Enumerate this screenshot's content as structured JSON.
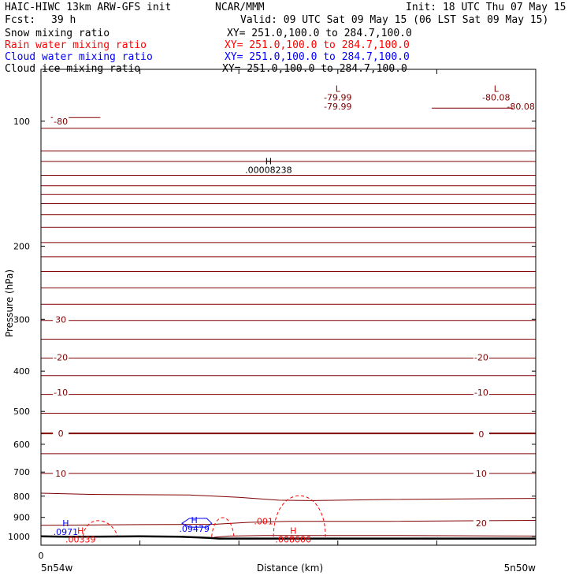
{
  "header": {
    "model_title": "HAIC-HIWC 13km ARW-GFS init",
    "institution": "NCAR/MMM",
    "init_time": "Init: 18 UTC Thu 07 May 15",
    "forecast_label": "Fcst:",
    "forecast_hours": "39 h",
    "valid_time": "Valid: 09 UTC Sat 09 May 15 (06 LST Sat 09 May 15)",
    "fields": [
      {
        "name": "Snow mixing ratio",
        "xy": "XY= 251.0,100.0 to 284.7,100.0",
        "color": "#000000"
      },
      {
        "name": "Rain water mixing ratio",
        "xy": "XY= 251.0,100.0 to 284.7,100.0",
        "color": "#ff0000"
      },
      {
        "name": "Cloud water mixing ratio",
        "xy": "XY= 251.0,100.0 to 284.7,100.0",
        "color": "#0000ff"
      },
      {
        "name": "Cloud ice mixing ratio",
        "xy": "XY= 251.0,100.0 to 284.7,100.0",
        "color": "#000000"
      }
    ]
  },
  "chart_data": {
    "type": "contour-cross-section",
    "ylabel": "Pressure (hPa)",
    "xlabel": "Distance (km)",
    "y_scale": "log-pressure",
    "ylim": [
      1050,
      75
    ],
    "y_ticks": [
      100,
      200,
      300,
      400,
      500,
      600,
      700,
      800,
      900,
      1000
    ],
    "x_ticks_count": 5,
    "x_start_label": "0",
    "x_left_label": "5n54w",
    "x_right_label": "5n50w",
    "colors": {
      "temperature": "#800000",
      "rain": "#ff0000",
      "cloud": "#0000ff",
      "terrain": "#000000"
    },
    "temperature_labels": [
      {
        "text": "-80",
        "x": 0.04,
        "p": 100
      },
      {
        "text": "-79.99",
        "x": 0.6,
        "p": 92
      },
      {
        "text": "-80.08",
        "x": 0.97,
        "p": 92
      },
      {
        "text": "30",
        "x": 0.04,
        "p": 300
      },
      {
        "text": "-20",
        "x": 0.04,
        "p": 370
      },
      {
        "text": "-20",
        "x": 0.89,
        "p": 370
      },
      {
        "text": "-10",
        "x": 0.04,
        "p": 450
      },
      {
        "text": "-10",
        "x": 0.89,
        "p": 450
      },
      {
        "text": "0",
        "x": 0.04,
        "p": 565
      },
      {
        "text": "0",
        "x": 0.89,
        "p": 567
      },
      {
        "text": "10",
        "x": 0.04,
        "p": 705
      },
      {
        "text": "10",
        "x": 0.89,
        "p": 705
      },
      {
        "text": "20",
        "x": 0.89,
        "p": 930
      }
    ],
    "extrema": [
      {
        "mark": "L",
        "value": "-79.99",
        "x": 0.6,
        "p": 85,
        "color": "#800000"
      },
      {
        "mark": "L",
        "value": "-80.08",
        "x": 0.92,
        "p": 85,
        "color": "#800000"
      },
      {
        "mark": "H",
        "value": ".00008238",
        "x": 0.46,
        "p": 127,
        "color": "#000000"
      },
      {
        "mark": "H",
        "value": ".0971",
        "x": 0.05,
        "p": 945,
        "color": "#0000ff"
      },
      {
        "mark": "H",
        "value": ".00339",
        "x": 0.08,
        "p": 985,
        "color": "#ff0000"
      },
      {
        "mark": "H",
        "value": ".09479",
        "x": 0.31,
        "p": 930,
        "color": "#0000ff"
      },
      {
        "mark": "H",
        "value": ".008606",
        "x": 0.51,
        "p": 985,
        "color": "#ff0000"
      }
    ],
    "rain_labels": [
      {
        "text": ".001",
        "x": 0.45,
        "p": 920
      }
    ]
  }
}
